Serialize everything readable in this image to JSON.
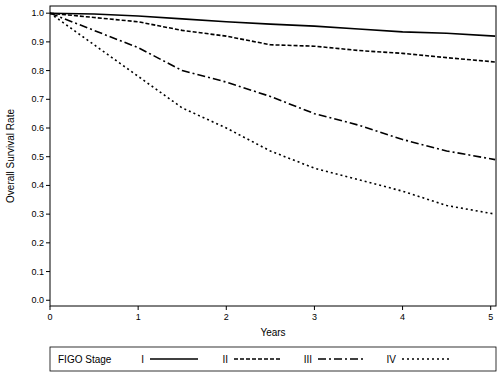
{
  "chart_data": {
    "type": "line",
    "x_label": "Years",
    "y_label": "Overall Survival Rate",
    "legend_title": "FIGO Stage",
    "legend": "bottom",
    "grid": false,
    "xlim": [
      0,
      5.06
    ],
    "xticks": [
      0,
      1,
      2,
      3,
      4,
      5
    ],
    "ylim": [
      -0.02,
      1.025
    ],
    "yticks": [
      {
        "value": 0,
        "label": "0.0"
      },
      0.1,
      0.2,
      0.3,
      0.4,
      0.5,
      0.6,
      0.7,
      0.8,
      0.9,
      {
        "value": 1,
        "label": "1.0"
      }
    ],
    "x": [
      0,
      0.5,
      1,
      1.5,
      2,
      2.5,
      3,
      3.5,
      4,
      4.5,
      5.05
    ],
    "series": [
      {
        "name": "I",
        "color": "#000000",
        "line_style": "solid",
        "values": [
          1.0,
          0.997,
          0.99,
          0.98,
          0.97,
          0.962,
          0.955,
          0.945,
          0.935,
          0.93,
          0.92
        ]
      },
      {
        "name": "II",
        "color": "#000000",
        "line_style": "dashed",
        "values": [
          1.0,
          0.985,
          0.97,
          0.94,
          0.92,
          0.89,
          0.885,
          0.87,
          0.86,
          0.845,
          0.83
        ]
      },
      {
        "name": "III",
        "color": "#000000",
        "line_style": "dashdot",
        "values": [
          1.0,
          0.94,
          0.88,
          0.8,
          0.76,
          0.71,
          0.65,
          0.61,
          0.56,
          0.52,
          0.49
        ]
      },
      {
        "name": "IV",
        "color": "#000000",
        "line_style": "dotted",
        "values": [
          1.0,
          0.89,
          0.78,
          0.67,
          0.6,
          0.52,
          0.46,
          0.42,
          0.38,
          0.33,
          0.3
        ]
      }
    ]
  }
}
